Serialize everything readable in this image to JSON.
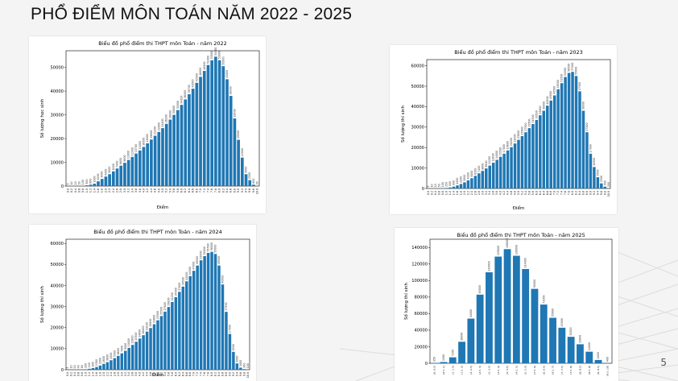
{
  "slide": {
    "title": "PHỔ ĐIỂM MÔN TOÁN NĂM 2022 - 2025",
    "page_number": "5"
  },
  "chart_data": [
    {
      "type": "bar",
      "title": "Biểu đồ phổ điểm thi THPT môn Toán - năm 2022",
      "xlabel": "Điểm",
      "ylabel": "Số lượng học sinh",
      "ylim": [
        0,
        57000
      ],
      "yticks": [
        0,
        10000,
        20000,
        30000,
        40000,
        50000
      ],
      "categories": [
        "0.0",
        "0.2",
        "0.4",
        "0.6",
        "0.8",
        "1.0",
        "1.2",
        "1.4",
        "1.6",
        "1.8",
        "2.0",
        "2.2",
        "2.4",
        "2.6",
        "2.8",
        "3.0",
        "3.2",
        "3.4",
        "3.6",
        "3.8",
        "4.0",
        "4.2",
        "4.4",
        "4.6",
        "4.8",
        "5.0",
        "5.2",
        "5.4",
        "5.6",
        "5.8",
        "6.0",
        "6.2",
        "6.4",
        "6.6",
        "6.8",
        "7.0",
        "7.2",
        "7.4",
        "7.6",
        "7.8",
        "8.0",
        "8.2",
        "8.4",
        "8.6",
        "8.8",
        "9.0",
        "9.2",
        "9.4",
        "9.6",
        "9.8",
        "10.0"
      ],
      "values": [
        5,
        10,
        20,
        50,
        100,
        300,
        600,
        1000,
        2000,
        3000,
        4000,
        5000,
        6200,
        7400,
        8600,
        9800,
        11000,
        12300,
        13700,
        15000,
        16500,
        18000,
        19600,
        21200,
        22800,
        24400,
        26200,
        28000,
        30000,
        32000,
        34200,
        36500,
        38700,
        41000,
        43500,
        46000,
        48500,
        51000,
        53000,
        54500,
        53000,
        50500,
        45000,
        38000,
        28500,
        19500,
        12000,
        5000,
        2500,
        600,
        30
      ]
    },
    {
      "type": "bar",
      "title": "Biểu đồ phổ điểm thi THPT môn Toán - năm 2023",
      "xlabel": "Điểm",
      "ylabel": "Số lượng thí sinh",
      "ylim": [
        0,
        63000
      ],
      "yticks": [
        0,
        10000,
        20000,
        30000,
        40000,
        50000,
        60000
      ],
      "categories": [
        "0.0",
        "0.2",
        "0.4",
        "0.6",
        "0.8",
        "1.0",
        "1.2",
        "1.4",
        "1.6",
        "1.8",
        "2.0",
        "2.2",
        "2.4",
        "2.6",
        "2.8",
        "3.0",
        "3.2",
        "3.4",
        "3.6",
        "3.8",
        "4.0",
        "4.2",
        "4.4",
        "4.6",
        "4.8",
        "5.0",
        "5.2",
        "5.4",
        "5.6",
        "5.8",
        "6.0",
        "6.2",
        "6.4",
        "6.6",
        "6.8",
        "7.0",
        "7.2",
        "7.4",
        "7.6",
        "7.8",
        "8.0",
        "8.2",
        "8.4",
        "8.6",
        "8.8",
        "9.0",
        "9.2",
        "9.4",
        "9.6",
        "9.8",
        "10.0"
      ],
      "values": [
        5,
        10,
        20,
        50,
        100,
        250,
        500,
        900,
        1500,
        2200,
        3000,
        4000,
        5000,
        6200,
        7400,
        8600,
        9800,
        11200,
        12600,
        14000,
        15500,
        17000,
        18600,
        20200,
        22000,
        23800,
        25600,
        27500,
        29500,
        31500,
        33500,
        35800,
        38000,
        40500,
        43000,
        45500,
        48500,
        51500,
        54500,
        56500,
        57000,
        55000,
        47500,
        38000,
        27500,
        17000,
        10500,
        5500,
        2500,
        900,
        200
      ]
    },
    {
      "type": "bar",
      "title": "Biểu đồ phổ điểm thi THPT môn Toán - năm 2024",
      "xlabel": "Điểm",
      "ylabel": "Số lượng thí sinh",
      "ylim": [
        0,
        62000
      ],
      "yticks": [
        0,
        10000,
        20000,
        30000,
        40000,
        50000,
        60000
      ],
      "categories": [
        "0.0",
        "0.2",
        "0.4",
        "0.6",
        "0.8",
        "1.0",
        "1.2",
        "1.4",
        "1.6",
        "1.8",
        "2.0",
        "2.2",
        "2.4",
        "2.6",
        "2.8",
        "3.0",
        "3.2",
        "3.4",
        "3.6",
        "3.8",
        "4.0",
        "4.2",
        "4.4",
        "4.6",
        "4.8",
        "5.0",
        "5.2",
        "5.4",
        "5.6",
        "5.8",
        "6.0",
        "6.2",
        "6.4",
        "6.6",
        "6.8",
        "7.0",
        "7.2",
        "7.4",
        "7.6",
        "7.8",
        "8.0",
        "8.2",
        "8.4",
        "8.6",
        "8.8",
        "9.0",
        "9.2",
        "9.4",
        "9.6",
        "9.8",
        "10.0"
      ],
      "values": [
        5,
        10,
        20,
        40,
        80,
        200,
        450,
        800,
        1300,
        2000,
        2800,
        3600,
        4500,
        5500,
        6600,
        7800,
        9000,
        10400,
        11800,
        13300,
        14800,
        16400,
        18100,
        19800,
        21600,
        23500,
        25500,
        27600,
        29800,
        32200,
        34500,
        37000,
        39500,
        42000,
        44500,
        47000,
        49500,
        52000,
        54000,
        55500,
        56000,
        55000,
        49500,
        40500,
        27500,
        17000,
        8500,
        3000,
        1000,
        300,
        100
      ]
    },
    {
      "type": "bar",
      "title": "Biểu đồ phổ điểm thi THPT môn Toán - năm 2025",
      "xlabel": "",
      "ylabel": "Số lượng thí sinh",
      "ylim": [
        0,
        150000
      ],
      "yticks": [
        0,
        20000,
        40000,
        60000,
        80000,
        100000,
        120000,
        140000
      ],
      "categories": [
        "(0, 0.5]",
        "(0.5, 1]",
        "(1, 1.5]",
        "(1.5, 2]",
        "(2, 2.5]",
        "(2.5, 3]",
        "(3, 3.5]",
        "(3.5, 4]",
        "(4, 4.5]",
        "(4.5, 5]",
        "(5, 5.5]",
        "(5.5, 6]",
        "(6, 6.5]",
        "(6.5, 7]",
        "(7, 7.5]",
        "(7.5, 8]",
        "(8, 8.5]",
        "(8.5, 9]",
        "(9, 9.5]",
        "(9.5, 10]"
      ],
      "values": [
        350,
        1500,
        7200,
        26000,
        54000,
        83000,
        110000,
        129000,
        138000,
        130000,
        114000,
        90000,
        71000,
        55000,
        43000,
        32000,
        23000,
        14000,
        4000,
        400
      ]
    }
  ]
}
